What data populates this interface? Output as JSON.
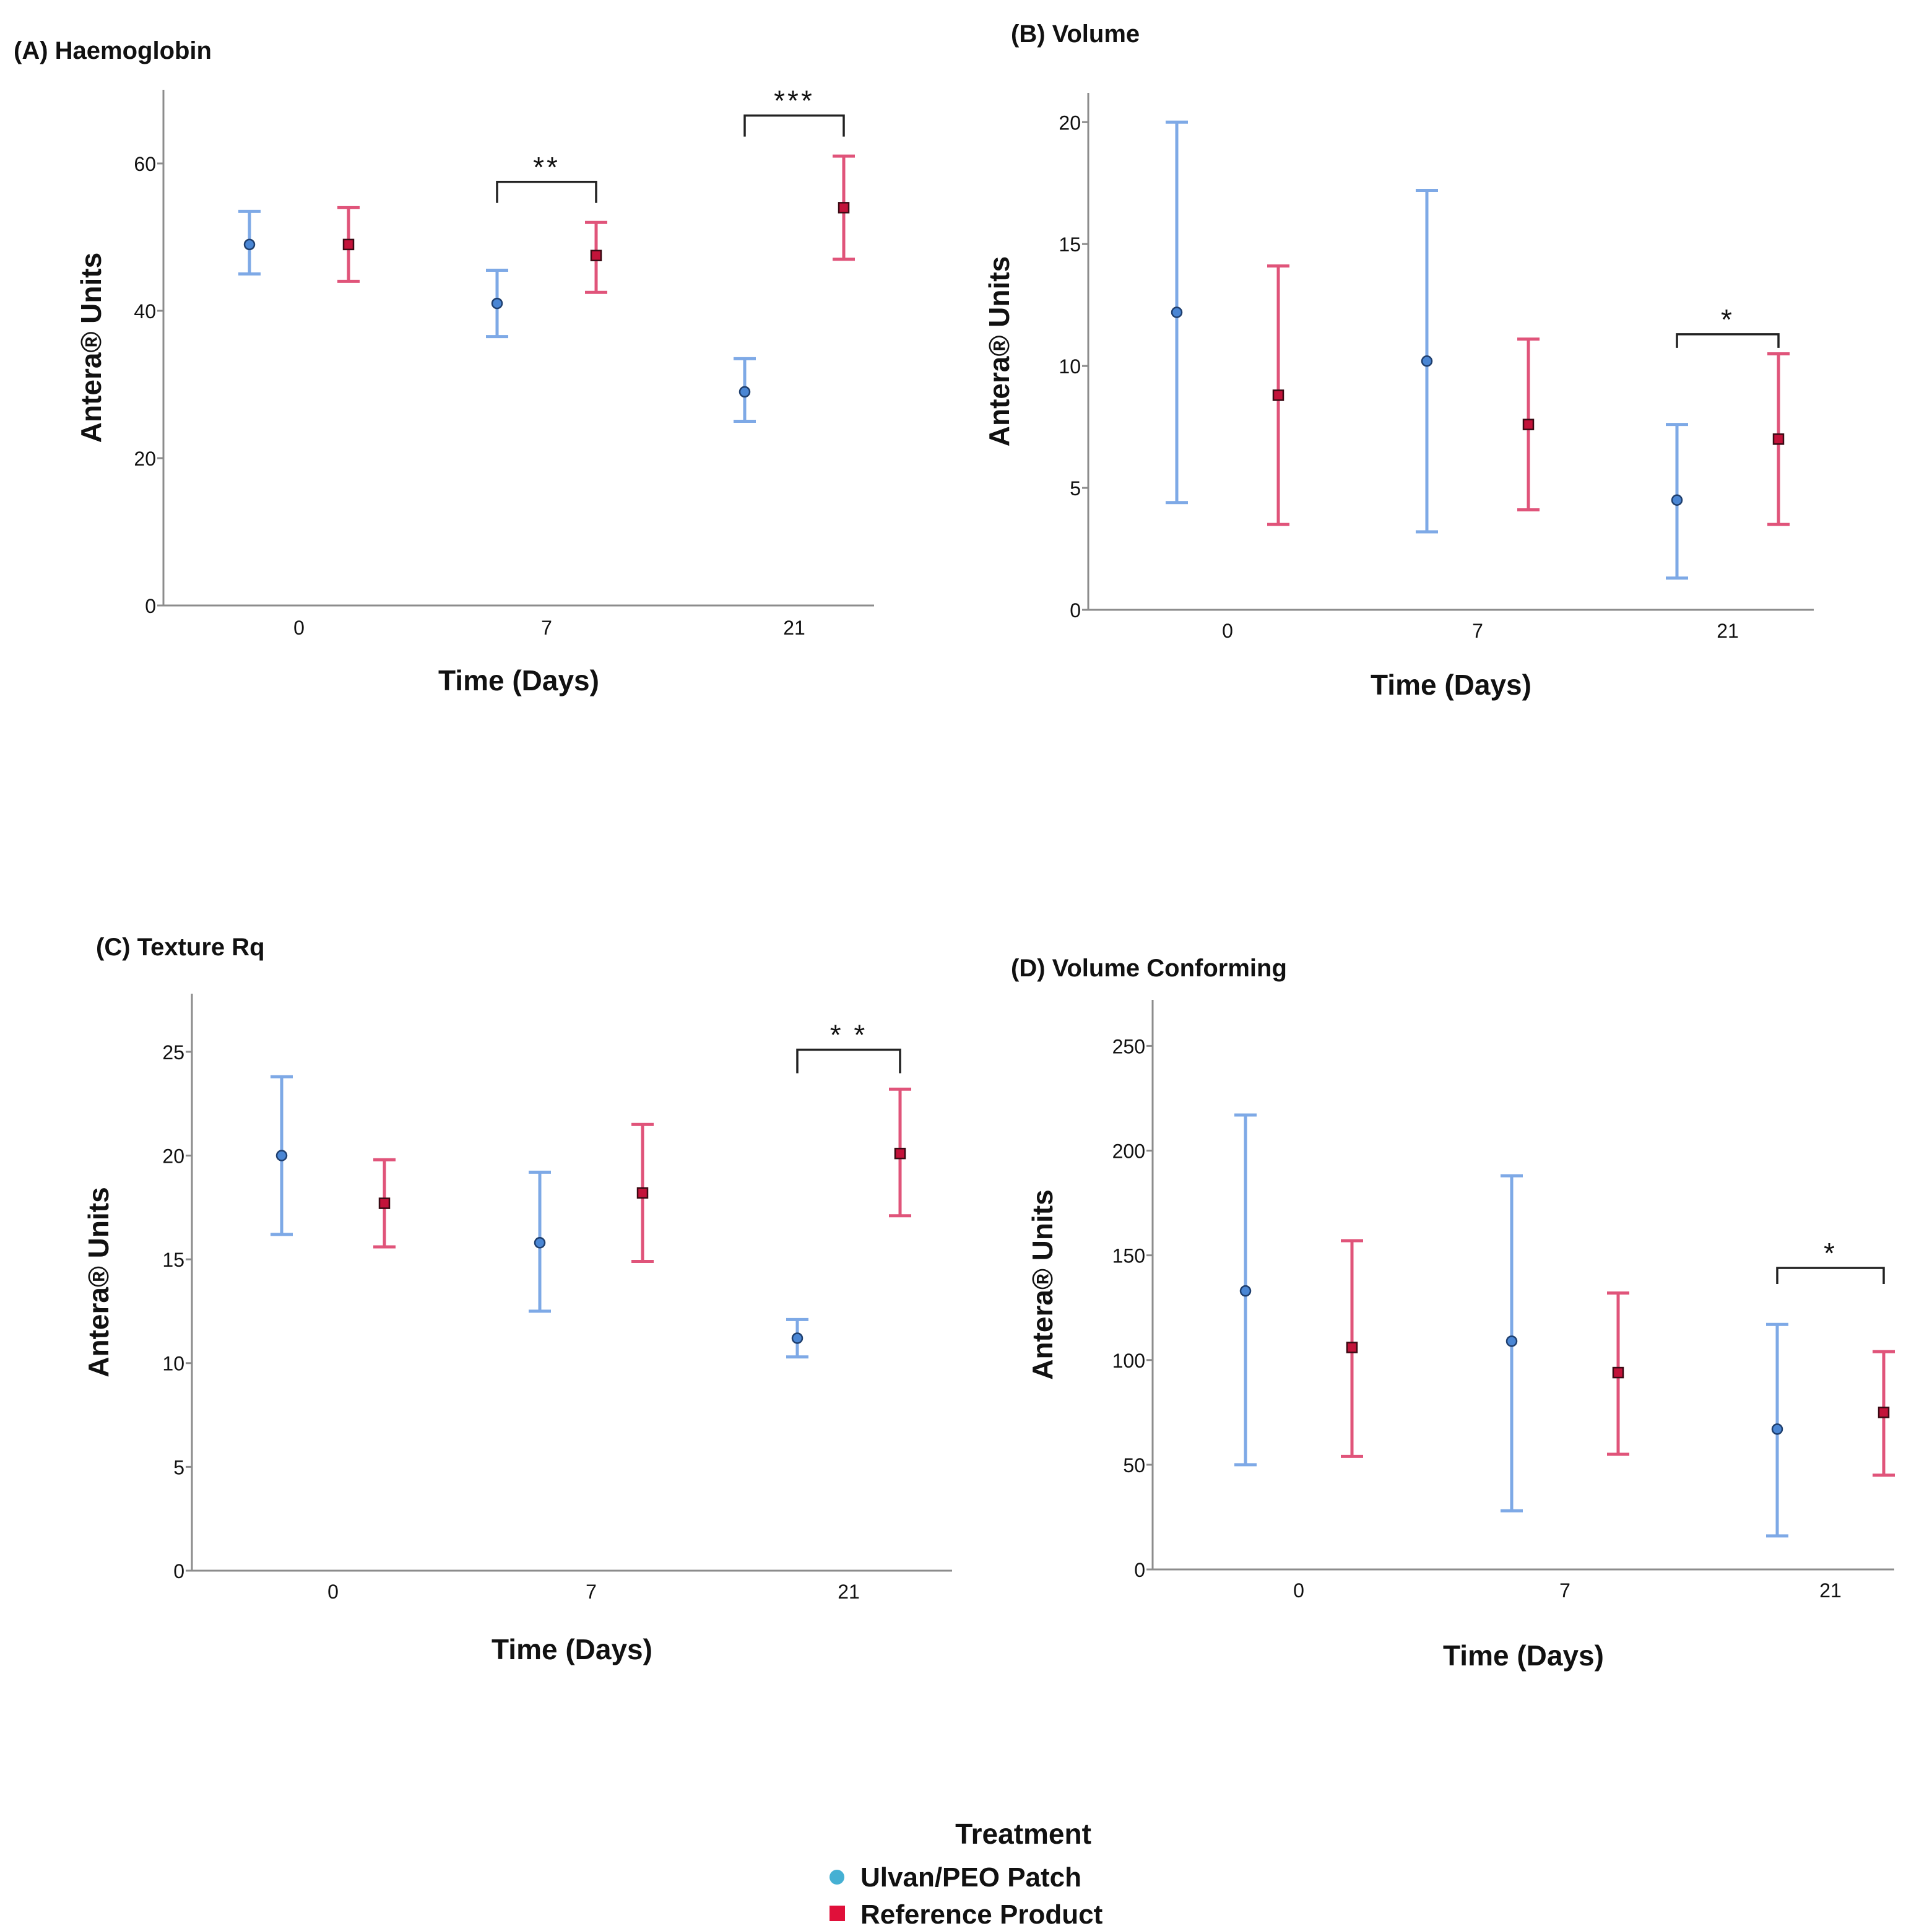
{
  "colors": {
    "ulvan": "#7ea9e6",
    "ulvan_marker": "#4a86d4",
    "reference": "#e0547a",
    "reference_marker": "#c3133a",
    "axis": "#8c8c8c",
    "text": "#111111",
    "legend_ulvan": "#45b0d3",
    "legend_reference": "#e0103a"
  },
  "legend": {
    "title": "Treatment",
    "items": [
      {
        "label": "Ulvan/PEO Patch",
        "marker": "circle",
        "color_key": "legend_ulvan"
      },
      {
        "label": "Reference Product",
        "marker": "square",
        "color_key": "legend_reference"
      }
    ]
  },
  "chart_data": [
    {
      "type": "scatter",
      "panel": "A",
      "title": "(A) Haemoglobin",
      "xlabel": "Time (Days)",
      "ylabel": "Antera® Units",
      "categories": [
        "0",
        "7",
        "21"
      ],
      "ylim": [
        0,
        70
      ],
      "yticks": [
        0,
        20,
        40,
        60
      ],
      "series": [
        {
          "name": "Ulvan/PEO Patch",
          "color_key": "ulvan",
          "marker": "circle",
          "mean": [
            49.0,
            41.0,
            29.0
          ],
          "lower": [
            45.0,
            36.5,
            25.0
          ],
          "upper": [
            53.5,
            45.5,
            33.5
          ]
        },
        {
          "name": "Reference Product",
          "color_key": "reference",
          "marker": "square",
          "mean": [
            49.0,
            47.5,
            54.0
          ],
          "lower": [
            44.0,
            42.5,
            47.0
          ],
          "upper": [
            54.0,
            52.0,
            61.0
          ]
        }
      ],
      "significance": [
        {
          "category": "7",
          "label": "**",
          "y": 57.5
        },
        {
          "category": "21",
          "label": "***",
          "y": 66.5
        }
      ]
    },
    {
      "type": "scatter",
      "panel": "B",
      "title": "(B) Volume",
      "xlabel": "Time (Days)",
      "ylabel": "Antera® Units",
      "categories": [
        "0",
        "7",
        "21"
      ],
      "ylim": [
        0,
        21.2
      ],
      "yticks": [
        0,
        5,
        10,
        15,
        20
      ],
      "series": [
        {
          "name": "Ulvan/PEO Patch",
          "color_key": "ulvan",
          "marker": "circle",
          "mean": [
            12.2,
            10.2,
            4.5
          ],
          "lower": [
            4.4,
            3.2,
            1.3
          ],
          "upper": [
            20.0,
            17.2,
            7.6
          ]
        },
        {
          "name": "Reference Product",
          "color_key": "reference",
          "marker": "square",
          "mean": [
            8.8,
            7.6,
            7.0
          ],
          "lower": [
            3.5,
            4.1,
            3.5
          ],
          "upper": [
            14.1,
            11.1,
            10.5
          ]
        }
      ],
      "significance": [
        {
          "category": "21",
          "label": "*",
          "y": 11.3
        }
      ]
    },
    {
      "type": "scatter",
      "panel": "C",
      "title": "(C) Texture Rq",
      "xlabel": "Time (Days)",
      "ylabel": "Antera® Units",
      "categories": [
        "0",
        "7",
        "21"
      ],
      "ylim": [
        0,
        27.8
      ],
      "yticks": [
        0,
        5,
        10,
        15,
        20,
        25
      ],
      "series": [
        {
          "name": "Ulvan/PEO Patch",
          "color_key": "ulvan",
          "marker": "circle",
          "mean": [
            20.0,
            15.8,
            11.2
          ],
          "lower": [
            16.2,
            12.5,
            10.3
          ],
          "upper": [
            23.8,
            19.2,
            12.1
          ]
        },
        {
          "name": "Reference Product",
          "color_key": "reference",
          "marker": "square",
          "mean": [
            17.7,
            18.2,
            20.1
          ],
          "lower": [
            15.6,
            14.9,
            17.1
          ],
          "upper": [
            19.8,
            21.5,
            23.2
          ]
        }
      ],
      "significance": [
        {
          "category": "21",
          "label": "* *",
          "y": 25.1
        }
      ]
    },
    {
      "type": "scatter",
      "panel": "D",
      "title": "(D) Volume Conforming",
      "xlabel": "Time (Days)",
      "ylabel": "Antera® Units",
      "categories": [
        "0",
        "7",
        "21"
      ],
      "ylim": [
        0,
        272
      ],
      "yticks": [
        0,
        50,
        100,
        150,
        200,
        250
      ],
      "series": [
        {
          "name": "Ulvan/PEO Patch",
          "color_key": "ulvan",
          "marker": "circle",
          "mean": [
            133,
            109,
            67
          ],
          "lower": [
            50,
            28,
            16
          ],
          "upper": [
            217,
            188,
            117
          ]
        },
        {
          "name": "Reference Product",
          "color_key": "reference",
          "marker": "square",
          "mean": [
            106,
            94,
            75
          ],
          "lower": [
            54,
            55,
            45
          ],
          "upper": [
            157,
            132,
            104
          ]
        }
      ],
      "significance": [
        {
          "category": "21",
          "label": "*",
          "y": 144
        }
      ]
    }
  ]
}
